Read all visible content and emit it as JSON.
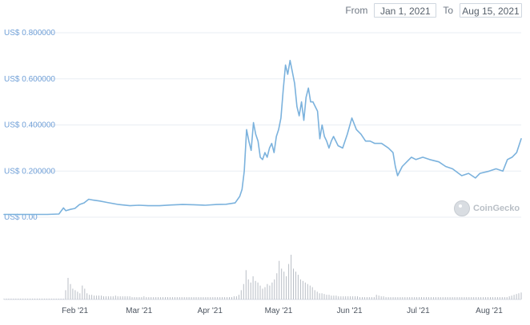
{
  "range": {
    "from_label": "From",
    "from_value": "Jan 1, 2021",
    "to_label": "To",
    "to_value": "Aug 15, 2021"
  },
  "watermark": {
    "text": "CoinGecko",
    "icon": "coingecko-logo-icon"
  },
  "colors": {
    "line": "#7bb2dd",
    "volume": "#b8bdc5",
    "axis_text": "#6f9fd7"
  },
  "chart_data": {
    "type": "line",
    "title": "",
    "xlabel": "",
    "ylabel": "",
    "x_range": [
      "2021-01-01",
      "2021-08-15"
    ],
    "ylim": [
      0,
      0.8
    ],
    "y_ticks": [
      0,
      0.2,
      0.4,
      0.6,
      0.8
    ],
    "y_tick_labels": [
      "US$ 0.00",
      "US$ 0.200000",
      "US$ 0.400000",
      "US$ 0.600000",
      "US$ 0.800000"
    ],
    "x_ticks": [
      "2021-02-01",
      "2021-03-01",
      "2021-04-01",
      "2021-05-01",
      "2021-06-01",
      "2021-07-01",
      "2021-08-01"
    ],
    "x_tick_labels": [
      "Feb '21",
      "Mar '21",
      "Apr '21",
      "May '21",
      "Jun '21",
      "Jul '21",
      "Aug '21"
    ],
    "grid": true,
    "legend": "none",
    "series": [
      {
        "values": [
          [
            "2021-01-01",
            0.012
          ],
          [
            "2021-01-05",
            0.012
          ],
          [
            "2021-01-10",
            0.012
          ],
          [
            "2021-01-15",
            0.012
          ],
          [
            "2021-01-20",
            0.012
          ],
          [
            "2021-01-25",
            0.014
          ],
          [
            "2021-01-27",
            0.04
          ],
          [
            "2021-01-28",
            0.028
          ],
          [
            "2021-01-30",
            0.034
          ],
          [
            "2021-02-01",
            0.038
          ],
          [
            "2021-02-03",
            0.055
          ],
          [
            "2021-02-05",
            0.062
          ],
          [
            "2021-02-07",
            0.078
          ],
          [
            "2021-02-09",
            0.074
          ],
          [
            "2021-02-12",
            0.07
          ],
          [
            "2021-02-15",
            0.064
          ],
          [
            "2021-02-20",
            0.055
          ],
          [
            "2021-02-25",
            0.05
          ],
          [
            "2021-03-01",
            0.052
          ],
          [
            "2021-03-05",
            0.05
          ],
          [
            "2021-03-10",
            0.05
          ],
          [
            "2021-03-15",
            0.053
          ],
          [
            "2021-03-20",
            0.055
          ],
          [
            "2021-03-25",
            0.054
          ],
          [
            "2021-03-30",
            0.052
          ],
          [
            "2021-04-04",
            0.055
          ],
          [
            "2021-04-08",
            0.056
          ],
          [
            "2021-04-12",
            0.062
          ],
          [
            "2021-04-14",
            0.09
          ],
          [
            "2021-04-15",
            0.12
          ],
          [
            "2021-04-16",
            0.2
          ],
          [
            "2021-04-17",
            0.38
          ],
          [
            "2021-04-18",
            0.33
          ],
          [
            "2021-04-19",
            0.29
          ],
          [
            "2021-04-20",
            0.41
          ],
          [
            "2021-04-21",
            0.36
          ],
          [
            "2021-04-22",
            0.33
          ],
          [
            "2021-04-23",
            0.26
          ],
          [
            "2021-04-24",
            0.25
          ],
          [
            "2021-04-25",
            0.28
          ],
          [
            "2021-04-26",
            0.26
          ],
          [
            "2021-04-27",
            0.3
          ],
          [
            "2021-04-28",
            0.32
          ],
          [
            "2021-04-29",
            0.28
          ],
          [
            "2021-04-30",
            0.35
          ],
          [
            "2021-05-01",
            0.38
          ],
          [
            "2021-05-02",
            0.43
          ],
          [
            "2021-05-03",
            0.55
          ],
          [
            "2021-05-04",
            0.66
          ],
          [
            "2021-05-05",
            0.62
          ],
          [
            "2021-05-06",
            0.68
          ],
          [
            "2021-05-07",
            0.63
          ],
          [
            "2021-05-08",
            0.58
          ],
          [
            "2021-05-09",
            0.48
          ],
          [
            "2021-05-10",
            0.44
          ],
          [
            "2021-05-11",
            0.5
          ],
          [
            "2021-05-12",
            0.42
          ],
          [
            "2021-05-13",
            0.52
          ],
          [
            "2021-05-14",
            0.56
          ],
          [
            "2021-05-15",
            0.5
          ],
          [
            "2021-05-16",
            0.5
          ],
          [
            "2021-05-17",
            0.48
          ],
          [
            "2021-05-18",
            0.46
          ],
          [
            "2021-05-19",
            0.34
          ],
          [
            "2021-05-20",
            0.4
          ],
          [
            "2021-05-21",
            0.35
          ],
          [
            "2021-05-22",
            0.33
          ],
          [
            "2021-05-23",
            0.3
          ],
          [
            "2021-05-24",
            0.33
          ],
          [
            "2021-05-25",
            0.35
          ],
          [
            "2021-05-27",
            0.31
          ],
          [
            "2021-05-29",
            0.3
          ],
          [
            "2021-05-31",
            0.36
          ],
          [
            "2021-06-02",
            0.43
          ],
          [
            "2021-06-04",
            0.38
          ],
          [
            "2021-06-06",
            0.36
          ],
          [
            "2021-06-08",
            0.33
          ],
          [
            "2021-06-10",
            0.33
          ],
          [
            "2021-06-12",
            0.32
          ],
          [
            "2021-06-15",
            0.32
          ],
          [
            "2021-06-18",
            0.3
          ],
          [
            "2021-06-20",
            0.28
          ],
          [
            "2021-06-21",
            0.22
          ],
          [
            "2021-06-22",
            0.18
          ],
          [
            "2021-06-24",
            0.22
          ],
          [
            "2021-06-26",
            0.24
          ],
          [
            "2021-06-28",
            0.26
          ],
          [
            "2021-06-30",
            0.25
          ],
          [
            "2021-07-03",
            0.26
          ],
          [
            "2021-07-06",
            0.25
          ],
          [
            "2021-07-10",
            0.24
          ],
          [
            "2021-07-13",
            0.22
          ],
          [
            "2021-07-16",
            0.21
          ],
          [
            "2021-07-20",
            0.18
          ],
          [
            "2021-07-23",
            0.19
          ],
          [
            "2021-07-26",
            0.17
          ],
          [
            "2021-07-28",
            0.19
          ],
          [
            "2021-08-01",
            0.2
          ],
          [
            "2021-08-04",
            0.21
          ],
          [
            "2021-08-07",
            0.2
          ],
          [
            "2021-08-09",
            0.25
          ],
          [
            "2021-08-11",
            0.26
          ],
          [
            "2021-08-13",
            0.28
          ],
          [
            "2021-08-15",
            0.34
          ]
        ]
      }
    ],
    "volume": {
      "x_range": [
        "2021-01-01",
        "2021-08-15"
      ],
      "values": [
        1,
        1,
        1,
        1,
        1,
        1,
        1,
        1,
        1,
        1,
        1,
        1,
        1,
        1,
        1,
        1,
        1,
        1,
        1,
        1,
        1,
        1,
        1,
        1,
        1,
        1,
        12,
        28,
        20,
        14,
        12,
        10,
        8,
        18,
        14,
        8,
        6,
        6,
        5,
        5,
        5,
        5,
        4,
        4,
        4,
        4,
        4,
        5,
        4,
        4,
        4,
        4,
        4,
        4,
        3,
        3,
        3,
        3,
        3,
        4,
        3,
        3,
        3,
        3,
        3,
        3,
        3,
        3,
        3,
        3,
        3,
        3,
        3,
        3,
        3,
        3,
        3,
        3,
        3,
        3,
        3,
        3,
        3,
        3,
        3,
        3,
        3,
        3,
        3,
        3,
        3,
        3,
        3,
        3,
        3,
        3,
        3,
        4,
        4,
        6,
        12,
        20,
        38,
        26,
        22,
        30,
        24,
        22,
        18,
        14,
        16,
        20,
        18,
        22,
        26,
        34,
        50,
        40,
        36,
        30,
        46,
        58,
        40,
        36,
        32,
        26,
        24,
        22,
        20,
        18,
        16,
        12,
        10,
        8,
        8,
        7,
        6,
        6,
        5,
        5,
        5,
        4,
        4,
        4,
        4,
        4,
        4,
        4,
        4,
        4,
        3,
        3,
        3,
        3,
        3,
        3,
        3,
        6,
        5,
        4,
        4,
        3,
        3,
        3,
        3,
        3,
        3,
        3,
        3,
        3,
        3,
        3,
        3,
        3,
        3,
        3,
        3,
        3,
        3,
        3,
        3,
        3,
        3,
        3,
        3,
        3,
        3,
        3,
        3,
        3,
        3,
        3,
        3,
        3,
        3,
        3,
        3,
        3,
        3,
        3,
        3,
        3,
        3,
        3,
        3,
        3,
        3,
        3,
        3,
        3,
        3,
        3,
        3,
        4,
        5,
        6,
        7,
        8,
        9
      ]
    }
  }
}
